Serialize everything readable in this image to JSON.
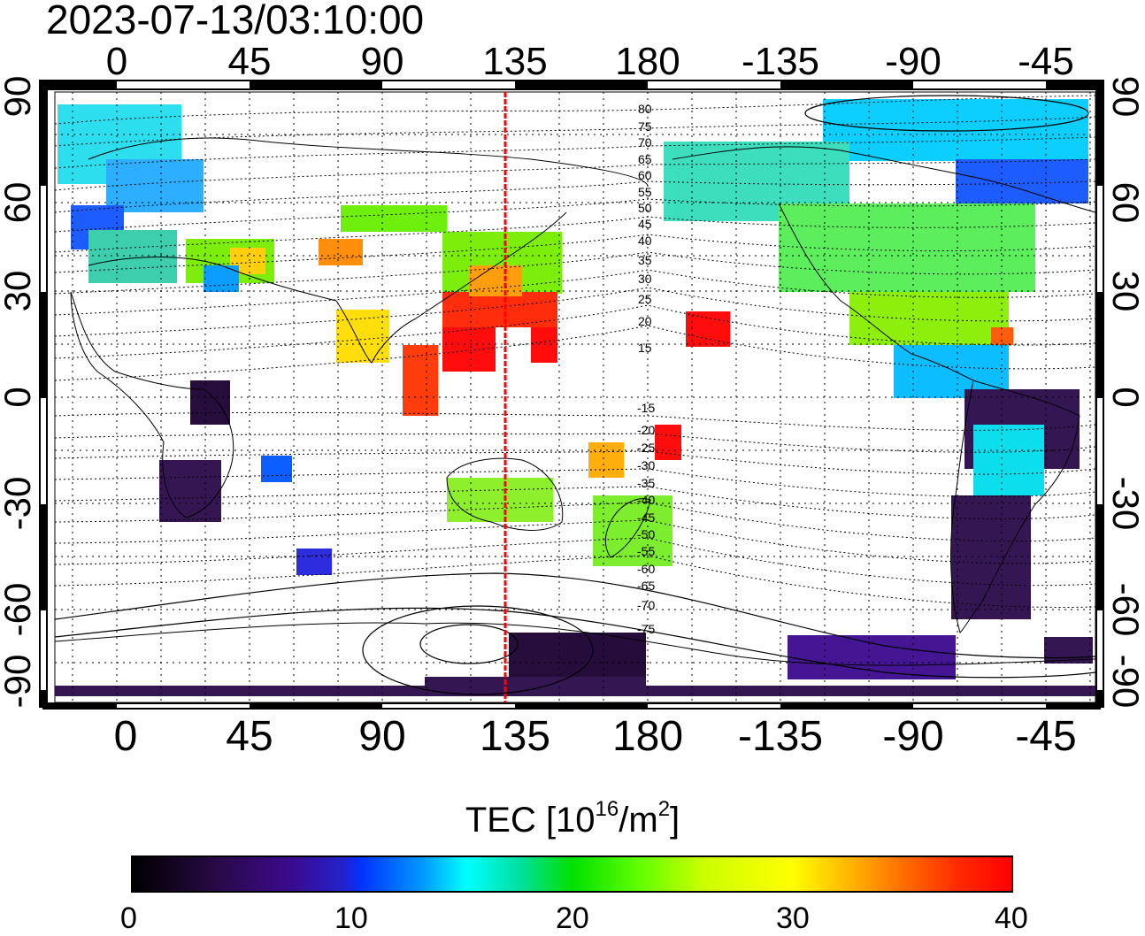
{
  "timestamp": "2023-07-13/03:10:00",
  "map": {
    "top_lon_labels": [
      "0",
      "45",
      "90",
      "135",
      "180",
      "-135",
      "-90",
      "-45"
    ],
    "bottom_lon_labels": [
      "0",
      "45",
      "90",
      "135",
      "180",
      "-135",
      "-90",
      "-45"
    ],
    "left_lat_labels": [
      "90",
      "60",
      "30",
      "0",
      "-30",
      "-60",
      "-90"
    ],
    "right_lat_labels": [
      "90",
      "60",
      "30",
      "0",
      "-30",
      "-60",
      "-90"
    ],
    "meridian_line_lon": 135,
    "meridian_line_color": "#ff0000",
    "contour_labels_north": [
      "80",
      "75",
      "70",
      "65",
      "60",
      "55",
      "50",
      "45",
      "40",
      "35",
      "30",
      "25",
      "20",
      "15"
    ],
    "contour_labels_south": [
      "-15",
      "-20",
      "-25",
      "-30",
      "-35",
      "-40",
      "-45",
      "-50",
      "-55",
      "-60",
      "-65",
      "-70",
      "-75"
    ]
  },
  "colorbar": {
    "title_prefix": "TEC  [10",
    "title_exp1": "16",
    "title_mid": "/m",
    "title_exp2": "2",
    "title_suffix": "]",
    "min": 0,
    "max": 40,
    "tick_labels": [
      "0",
      "10",
      "20",
      "30",
      "40"
    ],
    "colors": [
      "#000000",
      "#3b0a8e",
      "#0033ff",
      "#00ffff",
      "#00e000",
      "#ffff00",
      "#ff6a00",
      "#ff0000"
    ]
  }
}
